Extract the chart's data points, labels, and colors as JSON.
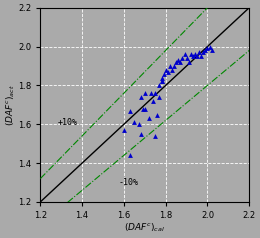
{
  "xlim": [
    1.2,
    2.2
  ],
  "ylim": [
    1.2,
    2.2
  ],
  "xticks": [
    1.2,
    1.4,
    1.6,
    1.8,
    2.0,
    2.2
  ],
  "yticks": [
    1.2,
    1.4,
    1.6,
    1.8,
    2.0,
    2.2
  ],
  "background_color": "#aaaaaa",
  "plot_bg_color": "#aaaaaa",
  "grid_color": "#cccccc",
  "marker_color": "#0000cc",
  "diagonal_color": "#000000",
  "band_color": "#008800",
  "label_plus10": "+10%",
  "label_minus10": "-10%",
  "scatter_x": [
    1.6,
    1.63,
    1.65,
    1.67,
    1.68,
    1.69,
    1.7,
    1.72,
    1.73,
    1.74,
    1.75,
    1.76,
    1.77,
    1.77,
    1.78,
    1.78,
    1.79,
    1.8,
    1.81,
    1.82,
    1.83,
    1.84,
    1.85,
    1.86,
    1.87,
    1.88,
    1.89,
    1.9,
    1.91,
    1.92,
    1.93,
    1.94,
    1.95,
    1.96,
    1.97,
    1.98,
    1.99,
    2.0,
    2.01,
    2.02,
    1.63,
    1.68,
    1.7,
    1.75,
    1.78
  ],
  "scatter_y": [
    1.57,
    1.44,
    1.61,
    1.6,
    1.55,
    1.68,
    1.68,
    1.63,
    1.76,
    1.72,
    1.54,
    1.65,
    1.8,
    1.74,
    1.82,
    1.84,
    1.86,
    1.88,
    1.87,
    1.9,
    1.88,
    1.9,
    1.92,
    1.93,
    1.92,
    1.94,
    1.96,
    1.94,
    1.92,
    1.96,
    1.95,
    1.96,
    1.95,
    1.97,
    1.95,
    1.97,
    1.98,
    1.99,
    2.0,
    1.98,
    1.67,
    1.74,
    1.76,
    1.76,
    1.82
  ]
}
